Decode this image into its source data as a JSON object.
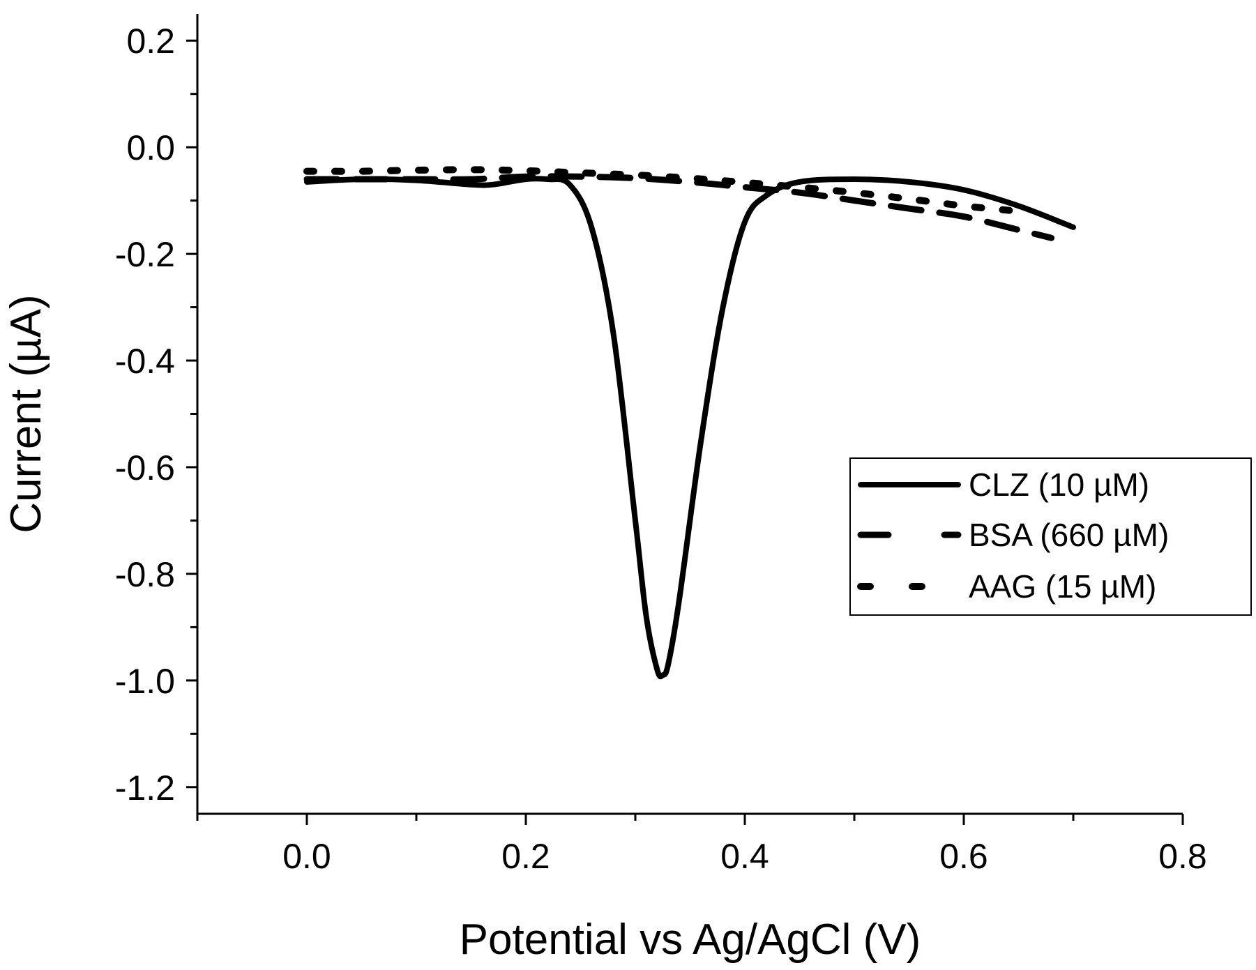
{
  "chart_data": {
    "type": "line",
    "xlabel": "Potential vs Ag/AgCl (V)",
    "ylabel": "Current (µA)",
    "xlim": [
      -0.1,
      0.8
    ],
    "ylim": [
      -1.25,
      0.25
    ],
    "xticks": [
      0.0,
      0.2,
      0.4,
      0.6,
      0.8
    ],
    "xtick_labels": [
      "0.0",
      "0.2",
      "0.4",
      "0.6",
      "0.8"
    ],
    "yticks": [
      0.2,
      0.0,
      -0.2,
      -0.4,
      -0.6,
      -0.8,
      -1.0,
      -1.2
    ],
    "ytick_labels": [
      "0.2",
      "0.0",
      "-0.2",
      "-0.4",
      "-0.6",
      "-0.8",
      "-1.0",
      "-1.2"
    ],
    "legend_position": "center-right",
    "series": [
      {
        "name": "CLZ (10 µM)",
        "style": "solid",
        "x": [
          0.0,
          0.05,
          0.1,
          0.15,
          0.17,
          0.2,
          0.22,
          0.24,
          0.26,
          0.28,
          0.3,
          0.31,
          0.32,
          0.325,
          0.33,
          0.34,
          0.36,
          0.38,
          0.4,
          0.42,
          0.45,
          0.5,
          0.55,
          0.6,
          0.65,
          0.7
        ],
        "y": [
          -0.065,
          -0.06,
          -0.062,
          -0.07,
          -0.07,
          -0.06,
          -0.06,
          -0.07,
          -0.15,
          -0.35,
          -0.7,
          -0.88,
          -0.98,
          -0.99,
          -0.97,
          -0.85,
          -0.55,
          -0.3,
          -0.14,
          -0.09,
          -0.065,
          -0.06,
          -0.065,
          -0.08,
          -0.11,
          -0.15
        ]
      },
      {
        "name": "BSA (660 µM)",
        "style": "dashed",
        "x": [
          0.0,
          0.05,
          0.1,
          0.15,
          0.2,
          0.25,
          0.3,
          0.35,
          0.4,
          0.45,
          0.5,
          0.55,
          0.6,
          0.65,
          0.68
        ],
        "y": [
          -0.06,
          -0.06,
          -0.06,
          -0.06,
          -0.055,
          -0.055,
          -0.058,
          -0.065,
          -0.075,
          -0.085,
          -0.1,
          -0.115,
          -0.13,
          -0.155,
          -0.17
        ]
      },
      {
        "name": "AAG (15 µM)",
        "style": "dotted",
        "x": [
          0.0,
          0.05,
          0.1,
          0.15,
          0.2,
          0.25,
          0.3,
          0.35,
          0.4,
          0.45,
          0.5,
          0.55,
          0.6,
          0.65
        ],
        "y": [
          -0.045,
          -0.045,
          -0.043,
          -0.042,
          -0.044,
          -0.048,
          -0.052,
          -0.058,
          -0.066,
          -0.075,
          -0.085,
          -0.097,
          -0.11,
          -0.12
        ]
      }
    ]
  }
}
